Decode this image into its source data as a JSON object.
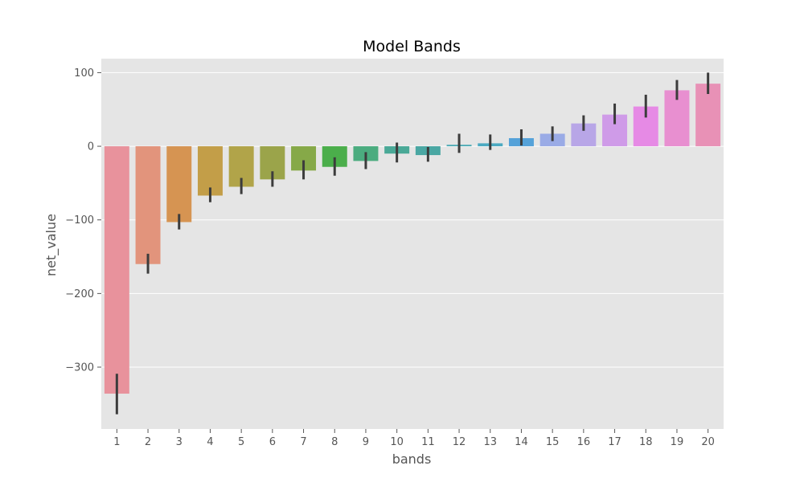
{
  "chart_data": {
    "type": "bar",
    "title": "Model Bands",
    "xlabel": "bands",
    "ylabel": "net_value",
    "categories": [
      "1",
      "2",
      "3",
      "4",
      "5",
      "6",
      "7",
      "8",
      "9",
      "10",
      "11",
      "12",
      "13",
      "14",
      "15",
      "16",
      "17",
      "18",
      "19",
      "20"
    ],
    "values": [
      -336,
      -160,
      -103,
      -67,
      -55,
      -45,
      -33,
      -28,
      -20,
      -10,
      -12,
      2,
      4,
      11,
      17,
      31,
      43,
      54,
      76,
      85
    ],
    "error_low": [
      -364,
      -173,
      -113,
      -76,
      -65,
      -55,
      -45,
      -40,
      -31,
      -22,
      -21,
      -9,
      -5,
      1,
      7,
      21,
      30,
      39,
      63,
      71
    ],
    "error_high": [
      -309,
      -146,
      -92,
      -56,
      -43,
      -34,
      -19,
      -15,
      -8,
      5,
      -1,
      17,
      16,
      23,
      27,
      42,
      58,
      70,
      90,
      100
    ],
    "bar_colors": [
      "#e8929c",
      "#e2947c",
      "#d69452",
      "#c39e48",
      "#b1a449",
      "#9ba44a",
      "#86a948",
      "#4bae4b",
      "#4bac7f",
      "#4aa997",
      "#4aa7a3",
      "#49a9b4",
      "#4baac2",
      "#55a2d9",
      "#9aabe6",
      "#b8a6e7",
      "#cf9be8",
      "#e68ae5",
      "#e88fd0",
      "#e891b6"
    ],
    "yticks": [
      100,
      0,
      -100,
      -200,
      -300
    ],
    "ytick_labels": [
      "100",
      "0",
      "−100",
      "−200",
      "−300"
    ],
    "ylim": [
      -384,
      119
    ],
    "grid": true,
    "background": "#e5e5e5",
    "errorbar_color": "#3c3c3c"
  }
}
